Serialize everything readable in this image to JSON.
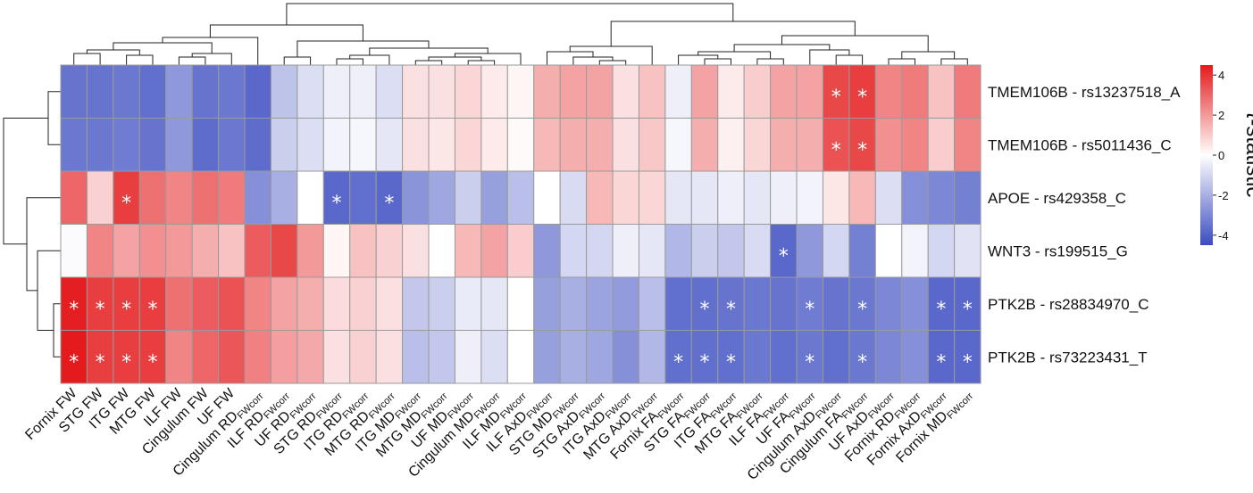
{
  "chart_data": {
    "type": "heatmap",
    "title": "",
    "colorbar": {
      "label_prefix": "t",
      "label_suffix": "-statistic",
      "min": -4.5,
      "max": 4.5,
      "ticks": [
        4,
        2,
        0,
        -2,
        -4
      ],
      "colors": {
        "low": "#3b4cc0",
        "mid": "#ffffff",
        "high": "#e41a1c"
      }
    },
    "rows": [
      "TMEM106B - rs13237518_A",
      "TMEM106B - rs5011436_C",
      "APOE - rs429358_C",
      "WNT3 - rs199515_G",
      "PTK2B - rs28834970_C",
      "PTK2B - rs73223431_T"
    ],
    "columns": [
      {
        "base": "Fornix FW",
        "sub": ""
      },
      {
        "base": "STG FW",
        "sub": ""
      },
      {
        "base": "ITG FW",
        "sub": ""
      },
      {
        "base": "MTG FW",
        "sub": ""
      },
      {
        "base": "ILF FW",
        "sub": ""
      },
      {
        "base": "Cingulum FW",
        "sub": ""
      },
      {
        "base": "UF FW",
        "sub": ""
      },
      {
        "base": "Cingulum RD",
        "sub": "FWcorr"
      },
      {
        "base": "ILF RD",
        "sub": "FWcorr"
      },
      {
        "base": "UF RD",
        "sub": "FWcorr"
      },
      {
        "base": "STG RD",
        "sub": "FWcorr"
      },
      {
        "base": "ITG RD",
        "sub": "FWcorr"
      },
      {
        "base": "MTG RD",
        "sub": "FWcorr"
      },
      {
        "base": "ITG MD",
        "sub": "FWcorr"
      },
      {
        "base": "MTG MD",
        "sub": "FWcorr"
      },
      {
        "base": "UF MD",
        "sub": "FWcorr"
      },
      {
        "base": "Cingulum MD",
        "sub": "FWcorr"
      },
      {
        "base": "ILF MD",
        "sub": "FWcorr"
      },
      {
        "base": "ILF AxD",
        "sub": "FWcorr"
      },
      {
        "base": "STG MD",
        "sub": "FWcorr"
      },
      {
        "base": "STG AxD",
        "sub": "FWcorr"
      },
      {
        "base": "ITG AxD",
        "sub": "FWcorr"
      },
      {
        "base": "MTG AxD",
        "sub": "FWcorr"
      },
      {
        "base": "Fornix FA",
        "sub": "FWcorr"
      },
      {
        "base": "STG FA",
        "sub": "FWcorr"
      },
      {
        "base": "ITG FA",
        "sub": "FWcorr"
      },
      {
        "base": "MTG FA",
        "sub": "FWcorr"
      },
      {
        "base": "ILF FA",
        "sub": "FWcorr"
      },
      {
        "base": "UF FA",
        "sub": "FWcorr"
      },
      {
        "base": "Cingulum AxD",
        "sub": "FWcorr"
      },
      {
        "base": "Cingulum FA",
        "sub": "FWcorr"
      },
      {
        "base": "UF AxD",
        "sub": "FWcorr"
      },
      {
        "base": "Fornix RD",
        "sub": "FWcorr"
      },
      {
        "base": "Fornix AxD",
        "sub": "FWcorr"
      },
      {
        "base": "Fornix MD",
        "sub": "FWcorr"
      }
    ],
    "values": [
      [
        -3.5,
        -3.5,
        -3.4,
        -3.6,
        -2.6,
        -3.5,
        -3.4,
        -3.8,
        -1.5,
        -0.8,
        -0.4,
        -0.4,
        -0.8,
        0.6,
        0.6,
        0.8,
        0.4,
        0.2,
        1.6,
        1.8,
        1.8,
        0.6,
        1.2,
        -0.4,
        1.8,
        0.4,
        1.0,
        1.8,
        1.8,
        3.6,
        3.8,
        2.4,
        2.6,
        1.2,
        2.6
      ],
      [
        -3.4,
        -3.4,
        -3.3,
        -3.5,
        -2.6,
        -3.7,
        -3.4,
        -3.7,
        -1.2,
        -0.8,
        -0.3,
        -0.2,
        -0.6,
        0.6,
        0.5,
        0.8,
        0.4,
        0.1,
        1.4,
        1.6,
        1.6,
        0.6,
        1.1,
        -0.2,
        1.6,
        0.3,
        0.8,
        1.6,
        1.6,
        3.4,
        3.6,
        2.2,
        2.4,
        1.0,
        2.4
      ],
      [
        3.0,
        0.9,
        3.8,
        2.8,
        2.4,
        2.8,
        2.6,
        -2.8,
        -2.0,
        0.0,
        -3.8,
        -3.6,
        -3.8,
        -2.7,
        -2.2,
        -1.2,
        -2.4,
        -1.6,
        0.0,
        -0.9,
        1.4,
        0.8,
        0.8,
        -0.6,
        -0.6,
        -0.4,
        -0.6,
        -0.4,
        -0.3,
        0.5,
        1.4,
        -0.8,
        -2.8,
        -3.0,
        -3.2
      ],
      [
        -0.1,
        2.4,
        1.8,
        2.2,
        2.0,
        1.6,
        1.2,
        3.2,
        3.6,
        2.0,
        0.2,
        1.2,
        0.9,
        0.6,
        0.0,
        1.4,
        1.8,
        1.0,
        -2.6,
        -1.0,
        -1.0,
        -0.4,
        -0.6,
        -1.8,
        -1.2,
        -1.4,
        -0.9,
        -3.8,
        -2.6,
        -1.0,
        -3.2,
        0.0,
        -0.3,
        -1.0,
        -0.7
      ],
      [
        4.4,
        3.8,
        3.8,
        3.8,
        2.8,
        3.2,
        3.4,
        2.4,
        1.8,
        1.6,
        0.7,
        0.9,
        0.6,
        -1.4,
        -1.2,
        -0.5,
        -0.6,
        0.0,
        -2.4,
        -2.0,
        -2.3,
        -2.5,
        -1.6,
        -3.6,
        -3.6,
        -3.5,
        -3.4,
        -3.5,
        -3.3,
        -3.5,
        -3.4,
        -3.0,
        -2.8,
        -3.8,
        -3.8
      ],
      [
        4.5,
        3.8,
        3.8,
        3.8,
        2.4,
        3.0,
        3.3,
        2.5,
        1.9,
        1.7,
        0.6,
        0.9,
        0.6,
        -1.6,
        -1.4,
        -0.4,
        -0.8,
        0.0,
        -2.4,
        -2.0,
        -2.2,
        -2.8,
        -1.8,
        -3.6,
        -3.6,
        -3.6,
        -3.4,
        -3.6,
        -3.4,
        -3.6,
        -3.4,
        -3.0,
        -2.8,
        -3.8,
        -3.8
      ]
    ],
    "significant": [
      [
        29,
        30
      ],
      [
        29,
        30
      ],
      [
        2,
        10,
        12
      ],
      [
        27
      ],
      [
        0,
        1,
        2,
        3,
        24,
        25,
        28,
        30,
        33,
        34
      ],
      [
        0,
        1,
        2,
        3,
        23,
        24,
        25,
        28,
        30,
        33,
        34
      ]
    ],
    "significance_marker": "*"
  }
}
